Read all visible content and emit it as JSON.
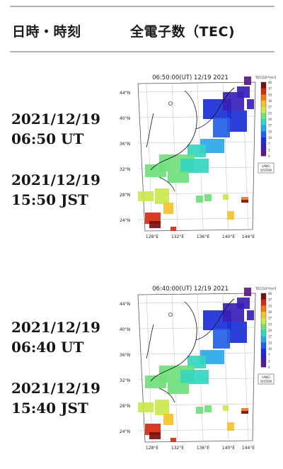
{
  "header": {
    "col_time": "日時・時刻",
    "col_tec": "全電子数（TEC)"
  },
  "rows": [
    {
      "date_ut": "2021/12/19",
      "time_ut": "06:50 UT",
      "date_jst": "2021/12/19",
      "time_jst": "15:50 JST",
      "map": {
        "title": "06:50:00(UT) 12/19 2021",
        "unit": "TEC[10¹⁶/m²]",
        "colorbar_ticks": [
          "40",
          "37",
          "33",
          "30",
          "27",
          "23",
          "20",
          "17",
          "13",
          "10",
          "7",
          "3",
          "0"
        ],
        "lat_labels": [
          "44°N",
          "40°N",
          "36°N",
          "32°N",
          "28°N",
          "24°N"
        ],
        "lon_labels": [
          "128°E",
          "132°E",
          "136°E",
          "140°E",
          "144°E"
        ],
        "logo_line1": "UNIG",
        "logo_line2": "SYSTEM"
      }
    },
    {
      "date_ut": "2021/12/19",
      "time_ut": "06:40 UT",
      "date_jst": "2021/12/19",
      "time_jst": "15:40 JST",
      "map": {
        "title": "06:40:00(UT) 12/19 2021",
        "unit": "TEC[10¹⁶/m²]",
        "colorbar_ticks": [
          "40",
          "37",
          "33",
          "30",
          "27",
          "23",
          "20",
          "17",
          "13",
          "10",
          "7",
          "3",
          "0"
        ],
        "lat_labels": [
          "44°N",
          "40°N",
          "36°N",
          "32°N",
          "28°N",
          "24°N"
        ],
        "lon_labels": [
          "128°E",
          "132°E",
          "136°E",
          "140°E",
          "144°E"
        ],
        "logo_line1": "UNIG",
        "logo_line2": "SYSTEM"
      }
    }
  ],
  "colors": {
    "rule": "#b5b5b5",
    "scale": [
      "#7a0f0f",
      "#d42a12",
      "#f07818",
      "#f5c22a",
      "#cbe84a",
      "#6fe07a",
      "#35d6c0",
      "#2aa8e8",
      "#2560e6",
      "#1a2fd6",
      "#3a1eb8",
      "#5a1a8a"
    ]
  }
}
